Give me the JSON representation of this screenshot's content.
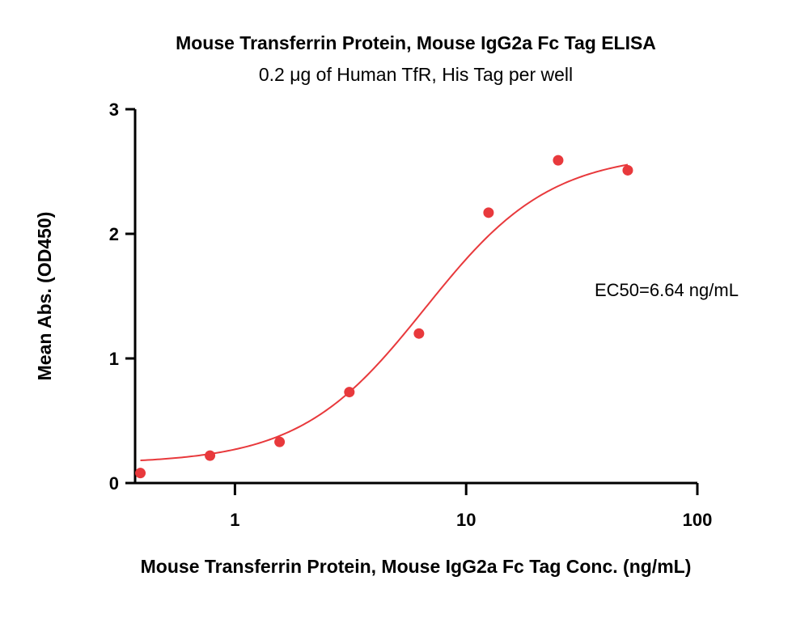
{
  "chart_data": {
    "type": "scatter",
    "title": "Mouse Transferrin Protein, Mouse IgG2a Fc Tag ELISA",
    "subtitle": "0.2 μg of Human TfR, His Tag per well",
    "xlabel": "Mouse Transferrin Protein, Mouse IgG2a Fc Tag Conc. (ng/mL)",
    "ylabel": "Mean Abs. (OD450)",
    "x_scale": "log",
    "xlim": [
      0.37,
      100
    ],
    "ylim": [
      0,
      3
    ],
    "x_ticks": [
      1,
      10,
      100
    ],
    "x_tick_labels": [
      "1",
      "10",
      "100"
    ],
    "y_ticks": [
      0,
      1,
      2,
      3
    ],
    "y_tick_labels": [
      "0",
      "1",
      "2",
      "3"
    ],
    "grid": false,
    "annotation": "EC50=6.64 ng/mL",
    "color": "#e8393c",
    "series": [
      {
        "x": [
          0.39,
          0.78,
          1.56,
          3.125,
          6.25,
          12.5,
          25,
          50
        ],
        "y": [
          0.08,
          0.22,
          0.33,
          0.73,
          1.2,
          2.17,
          2.59,
          2.51
        ]
      }
    ],
    "fit": {
      "bottom": 0.155,
      "top": 2.65,
      "ec50": 6.64,
      "hill": 1.6,
      "x_start": 0.39,
      "x_end": 50
    }
  }
}
